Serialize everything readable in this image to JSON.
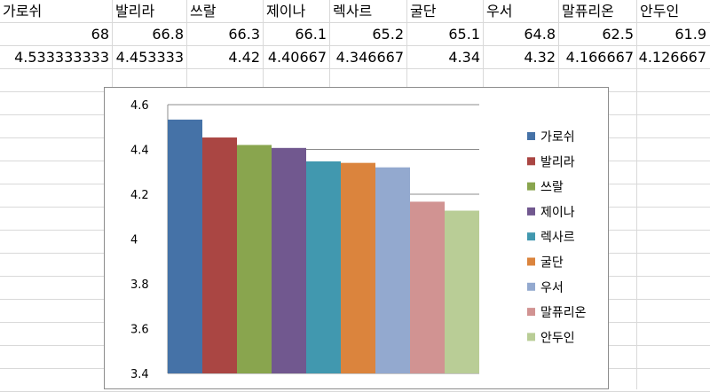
{
  "sheet": {
    "header_row": [
      "가로쉬",
      "발리라",
      "쓰랄",
      "제이나",
      "렉사르",
      "굴단",
      "우서",
      "말퓨리온",
      "안두인"
    ],
    "row2": [
      "68",
      "66.8",
      "66.3",
      "66.1",
      "65.2",
      "65.1",
      "64.8",
      "62.5",
      "61.9"
    ],
    "row3": [
      "4.533333333",
      "4.453333",
      "4.42",
      "4.40667",
      "4.346667",
      "4.34",
      "4.32",
      "4.166667",
      "4.126667"
    ]
  },
  "chart_data": {
    "type": "bar",
    "title": "",
    "xlabel": "",
    "ylabel": "",
    "ylim": [
      3.4,
      4.6
    ],
    "yticks": [
      3.4,
      3.6,
      3.8,
      4,
      4.2,
      4.4,
      4.6
    ],
    "ytick_labels": [
      "3.4",
      "3.6",
      "3.8",
      "4",
      "4.2",
      "4.4",
      "4.6"
    ],
    "grid": true,
    "legend_position": "right",
    "series": [
      {
        "name": "가로쉬",
        "value": 4.533333333,
        "color": "#4572A7"
      },
      {
        "name": "발리라",
        "value": 4.453333,
        "color": "#AA4643"
      },
      {
        "name": "쓰랄",
        "value": 4.42,
        "color": "#89A54E"
      },
      {
        "name": "제이나",
        "value": 4.40667,
        "color": "#71588F"
      },
      {
        "name": "렉사르",
        "value": 4.346667,
        "color": "#4198AF"
      },
      {
        "name": "굴단",
        "value": 4.34,
        "color": "#DB843D"
      },
      {
        "name": "우서",
        "value": 4.32,
        "color": "#93A9CF"
      },
      {
        "name": "말퓨리온",
        "value": 4.166667,
        "color": "#D19392"
      },
      {
        "name": "안두인",
        "value": 4.126667,
        "color": "#B9CD96"
      }
    ]
  }
}
